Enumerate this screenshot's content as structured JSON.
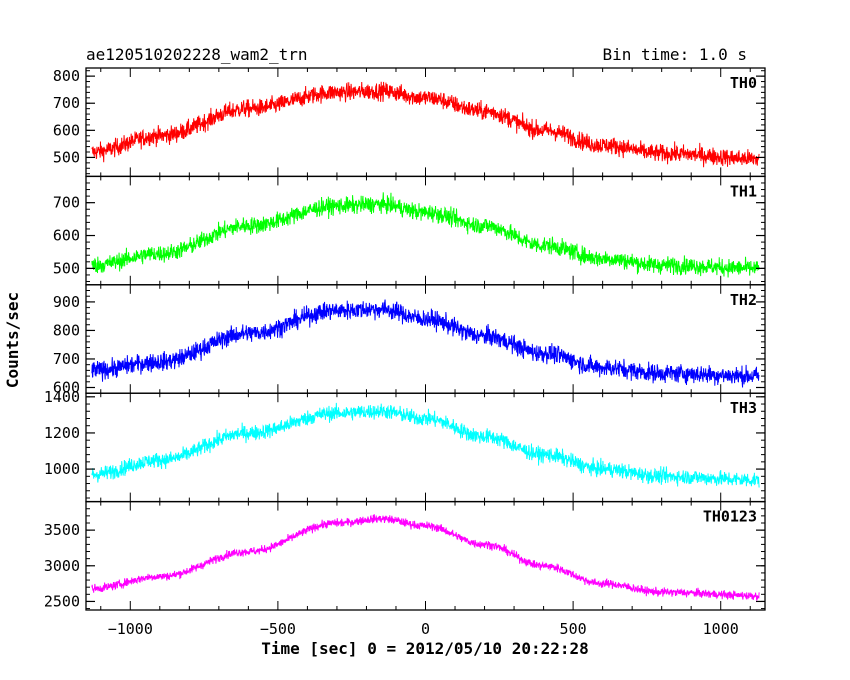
{
  "chart_data": {
    "type": "line",
    "title_left": "ae120510202228_wam2_trn",
    "title_right": "Bin time: 1.0 s",
    "xlabel": "Time [sec] 0 = 2012/05/10 20:22:28",
    "ylabel": "Counts/sec",
    "xlim": [
      -1150,
      1150
    ],
    "x_ticks": [
      -1000,
      -500,
      0,
      500,
      1000
    ],
    "x_tick_labels": [
      "−1000",
      "−500",
      "0",
      "500",
      "1000"
    ],
    "x_range": [
      -1130,
      1130
    ],
    "panels": [
      {
        "label": "TH0",
        "color": "#ff0000",
        "ylim": [
          430,
          830
        ],
        "y_ticks": [
          500,
          600,
          700,
          800
        ],
        "y_tick_labels": [
          "500",
          "600",
          "700",
          "800"
        ],
        "profile": [
          [
            -1130,
            520
          ],
          [
            -900,
            580
          ],
          [
            -600,
            680
          ],
          [
            -300,
            740
          ],
          [
            -150,
            745
          ],
          [
            0,
            720
          ],
          [
            200,
            670
          ],
          [
            400,
            600
          ],
          [
            600,
            545
          ],
          [
            800,
            515
          ],
          [
            1130,
            495
          ]
        ],
        "noise": 50
      },
      {
        "label": "TH1",
        "color": "#00ff00",
        "ylim": [
          450,
          780
        ],
        "y_ticks": [
          500,
          600,
          700
        ],
        "y_tick_labels": [
          "500",
          "600",
          "700"
        ],
        "profile": [
          [
            -1130,
            510
          ],
          [
            -900,
            545
          ],
          [
            -600,
            630
          ],
          [
            -300,
            690
          ],
          [
            -150,
            695
          ],
          [
            0,
            670
          ],
          [
            200,
            630
          ],
          [
            400,
            570
          ],
          [
            600,
            530
          ],
          [
            800,
            510
          ],
          [
            1130,
            500
          ]
        ],
        "noise": 40
      },
      {
        "label": "TH2",
        "color": "#0000ff",
        "ylim": [
          580,
          960
        ],
        "y_ticks": [
          600,
          700,
          800,
          900
        ],
        "y_tick_labels": [
          "600",
          "700",
          "800",
          "900"
        ],
        "profile": [
          [
            -1130,
            660
          ],
          [
            -900,
            690
          ],
          [
            -600,
            790
          ],
          [
            -300,
            870
          ],
          [
            -150,
            875
          ],
          [
            0,
            840
          ],
          [
            200,
            780
          ],
          [
            400,
            720
          ],
          [
            600,
            670
          ],
          [
            800,
            650
          ],
          [
            1130,
            640
          ]
        ],
        "noise": 50
      },
      {
        "label": "TH3",
        "color": "#00ffff",
        "ylim": [
          820,
          1420
        ],
        "y_ticks": [
          1000,
          1200,
          1400
        ],
        "y_tick_labels": [
          "1000",
          "1200",
          "1400"
        ],
        "profile": [
          [
            -1130,
            970
          ],
          [
            -900,
            1050
          ],
          [
            -600,
            1200
          ],
          [
            -300,
            1310
          ],
          [
            -150,
            1320
          ],
          [
            0,
            1280
          ],
          [
            200,
            1180
          ],
          [
            400,
            1080
          ],
          [
            600,
            1000
          ],
          [
            800,
            960
          ],
          [
            1130,
            940
          ]
        ],
        "noise": 65
      },
      {
        "label": "TH0123",
        "color": "#ff00ff",
        "ylim": [
          2380,
          3900
        ],
        "y_ticks": [
          2500,
          3000,
          3500
        ],
        "y_tick_labels": [
          "2500",
          "3000",
          "3500"
        ],
        "profile": [
          [
            -1130,
            2680
          ],
          [
            -900,
            2850
          ],
          [
            -600,
            3200
          ],
          [
            -300,
            3600
          ],
          [
            -150,
            3660
          ],
          [
            0,
            3560
          ],
          [
            200,
            3300
          ],
          [
            400,
            3000
          ],
          [
            600,
            2750
          ],
          [
            800,
            2630
          ],
          [
            1130,
            2580
          ]
        ],
        "noise": 90
      }
    ]
  }
}
